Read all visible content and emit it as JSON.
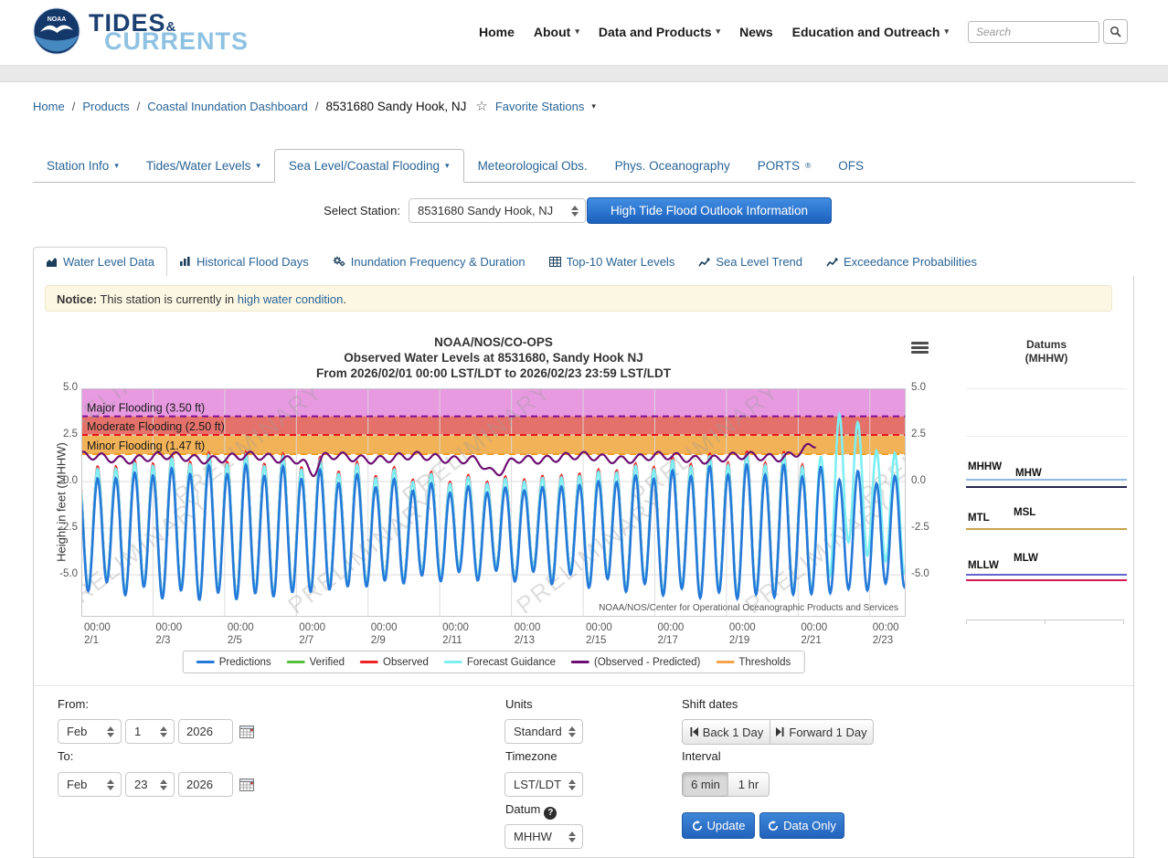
{
  "header": {
    "noaa_logo": "NOAA",
    "logo": {
      "tides": "TIDES",
      "amp": "&",
      "currents": "CURRENTS"
    },
    "nav": [
      {
        "label": "Home",
        "dropdown": false
      },
      {
        "label": "About",
        "dropdown": true
      },
      {
        "label": "Data and Products",
        "dropdown": true
      },
      {
        "label": "News",
        "dropdown": false
      },
      {
        "label": "Education and Outreach",
        "dropdown": true
      }
    ],
    "search_placeholder": "Search"
  },
  "breadcrumb": {
    "links": [
      "Home",
      "Products",
      "Coastal Inundation Dashboard"
    ],
    "current": "8531680 Sandy Hook, NJ",
    "favorite_label": "Favorite Stations"
  },
  "station_tabs": [
    {
      "label": "Station Info",
      "caret": true,
      "active": false
    },
    {
      "label": "Tides/Water Levels",
      "caret": true,
      "active": false
    },
    {
      "label": "Sea Level/Coastal Flooding",
      "caret": true,
      "active": true
    },
    {
      "label": "Meteorological Obs.",
      "caret": false,
      "active": false
    },
    {
      "label": "Phys. Oceanography",
      "caret": false,
      "active": false
    },
    {
      "label": "PORTS",
      "sup": "®",
      "caret": false,
      "active": false
    },
    {
      "label": "OFS",
      "caret": false,
      "active": false
    }
  ],
  "station_selector": {
    "label": "Select Station:",
    "value": "8531680 Sandy Hook, NJ",
    "button": "High Tide Flood Outlook Information"
  },
  "sub_tabs": [
    {
      "label": "Water Level Data",
      "icon": "area-chart-icon",
      "active": true
    },
    {
      "label": "Historical Flood Days",
      "icon": "bar-chart-icon",
      "active": false
    },
    {
      "label": "Inundation Frequency & Duration",
      "icon": "gears-icon",
      "active": false
    },
    {
      "label": "Top-10 Water Levels",
      "icon": "table-icon",
      "active": false
    },
    {
      "label": "Sea Level Trend",
      "icon": "trend-icon",
      "active": false
    },
    {
      "label": "Exceedance Probabilities",
      "icon": "trend-icon",
      "active": false
    }
  ],
  "notice": {
    "prefix": "Notice:",
    "text": " This station is currently in ",
    "link": "high water condition",
    "suffix": "."
  },
  "chart_data": {
    "type": "line",
    "title_lines": [
      "NOAA/NOS/CO-OPS",
      "Observed Water Levels at 8531680, Sandy Hook NJ",
      "From 2026/02/01 00:00 LST/LDT to 2026/02/23 23:59 LST/LDT"
    ],
    "ylabel": "Height in feet (MHHW)",
    "yticks": [
      5.0,
      2.5,
      0.0,
      -2.5,
      -5.0
    ],
    "ylim": [
      -7.25,
      5.0
    ],
    "x_range_days": 23,
    "x_tick_labels": [
      {
        "time": "00:00",
        "date": "2/1"
      },
      {
        "time": "00:00",
        "date": "2/3"
      },
      {
        "time": "00:00",
        "date": "2/5"
      },
      {
        "time": "00:00",
        "date": "2/7"
      },
      {
        "time": "00:00",
        "date": "2/9"
      },
      {
        "time": "00:00",
        "date": "2/11"
      },
      {
        "time": "00:00",
        "date": "2/13"
      },
      {
        "time": "00:00",
        "date": "2/15"
      },
      {
        "time": "00:00",
        "date": "2/17"
      },
      {
        "time": "00:00",
        "date": "2/19"
      },
      {
        "time": "00:00",
        "date": "2/21"
      },
      {
        "time": "00:00",
        "date": "2/23"
      }
    ],
    "thresholds": [
      {
        "label": "Major Flooding (3.50 ft)",
        "value": 3.5,
        "band_color": "#e89ae1",
        "line_color": "#7d1096"
      },
      {
        "label": "Moderate Flooding (2.50 ft)",
        "value": 2.5,
        "band_color": "#e5726a",
        "line_color": "#e8141e"
      },
      {
        "label": "Minor Flooding (1.47 ft)",
        "value": 1.47,
        "band_color": "#f2b258",
        "line_color": "#f2a024"
      }
    ],
    "legend": [
      {
        "label": "Predictions",
        "color": "#2579d8"
      },
      {
        "label": "Verified",
        "color": "#52c13c"
      },
      {
        "label": "Observed",
        "color": "#ee2222"
      },
      {
        "label": "Forecast Guidance",
        "color": "#7deef2"
      },
      {
        "label": "(Observed - Predicted)",
        "color": "#6d0f72"
      },
      {
        "label": "Thresholds",
        "color": "#f6a44c"
      }
    ],
    "watermark": "PRELIMINARY",
    "watermark_positions": [
      [
        -20,
        60
      ],
      [
        -15,
        248
      ],
      [
        235,
        248
      ],
      [
        485,
        248
      ],
      [
        735,
        248
      ],
      [
        925,
        240
      ],
      [
        110,
        128
      ],
      [
        360,
        128
      ],
      [
        610,
        128
      ],
      [
        860,
        128
      ]
    ],
    "attribution": "NOAA/NOS/Center for Operational Oceanographic Products and Services",
    "series_model": {
      "mean": -2.75,
      "mean_amp": 2.85,
      "spring_amp": 0.55,
      "spring_period": 14.76,
      "spring_phase": 4.0,
      "m2_period": 12.42,
      "m2_phase": 10.8,
      "k1_amp": 0.3,
      "k1_period": 23.93,
      "k1_phase": 2.0,
      "fcst_scale": 1.05,
      "fcst_offset": 0.5,
      "obs_scale": 1.07,
      "obs_offset": 0.62,
      "obs_end_day": 20.4,
      "resid_base": 1.28,
      "resid_dips": [
        [
          6.45,
          0.2,
          0.85
        ],
        [
          11.55,
          0.4,
          0.95
        ]
      ],
      "resid_end_rise": 0.8,
      "resid_end_center": 20.9,
      "resid_end_width": 1.0,
      "resid_end_day": 20.5,
      "storm_start": 20.3,
      "storm_center": 21.15,
      "storm_width": 0.22,
      "storm_amp": 3.0,
      "storm_tail_amp": 3.4,
      "storm_tail_start": 21.3,
      "storm_tail_decay": 0.9
    }
  },
  "datums_panel": {
    "title": "Datums",
    "subtitle": "(MHHW)",
    "items": [
      {
        "label": "MHHW",
        "line_color": "#90b8e6"
      },
      {
        "label": "MHW",
        "line_color": "#26264f"
      },
      {
        "label": "MTL",
        "line_color": "#c8a24a"
      },
      {
        "label": "MSL",
        "line_color": "#c8a24a"
      },
      {
        "label": "MLLW",
        "line_color": "#6565cf"
      },
      {
        "label": "MLW",
        "line_color": "#d2184e"
      }
    ]
  },
  "controls": {
    "from_label": "From:",
    "to_label": "To:",
    "from": {
      "month": "Feb",
      "day": "1",
      "year": "2026"
    },
    "to": {
      "month": "Feb",
      "day": "23",
      "year": "2026"
    },
    "units_label": "Units",
    "units_value": "Standard",
    "timezone_label": "Timezone",
    "timezone_value": "LST/LDT",
    "datum_label": "Datum",
    "datum_value": "MHHW",
    "shift_label": "Shift dates",
    "back_button": "Back 1 Day",
    "forward_button": "Forward 1 Day",
    "interval_label": "Interval",
    "interval_options": [
      "6 min",
      "1 hr"
    ],
    "interval_selected": "6 min",
    "update_button": "Update",
    "data_only_button": "Data Only"
  }
}
